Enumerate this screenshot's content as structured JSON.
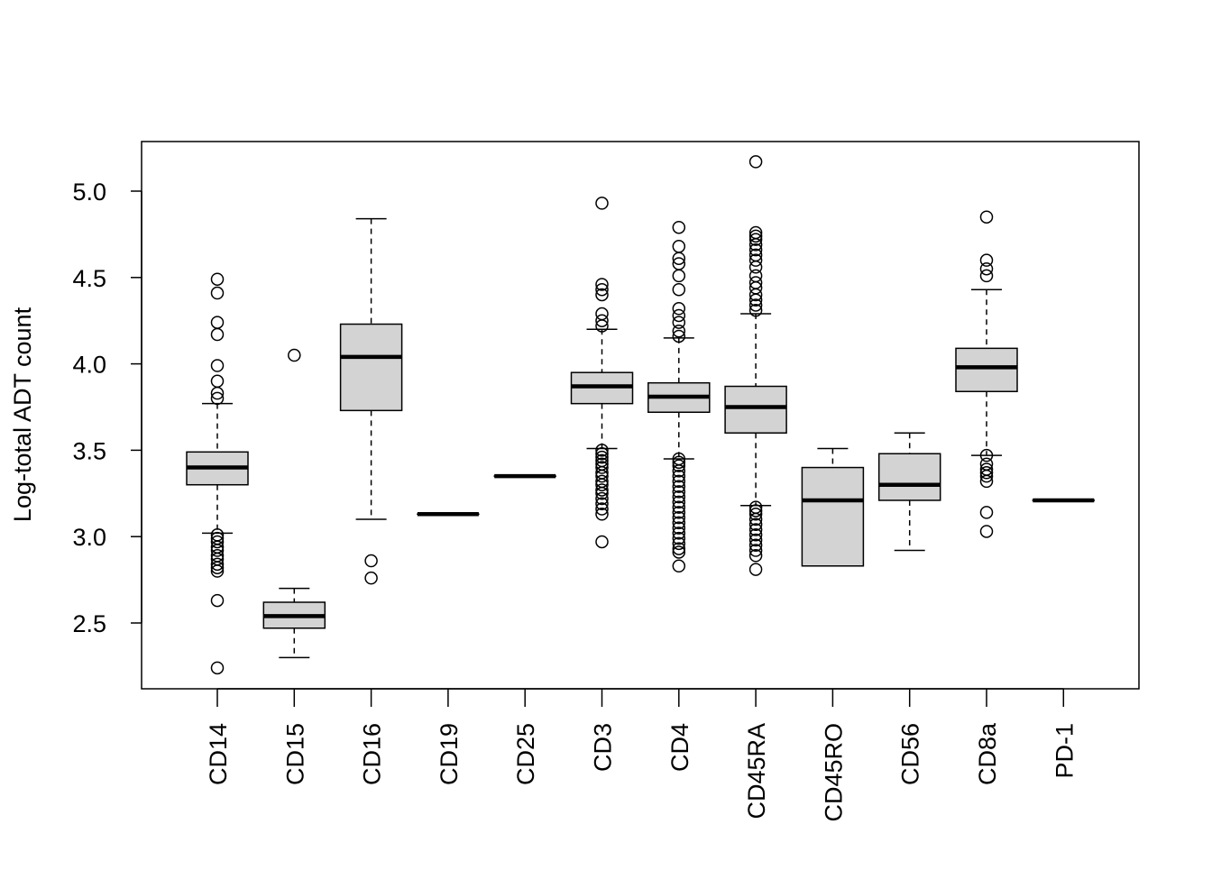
{
  "chart_data": {
    "type": "boxplot",
    "title": "",
    "xlabel": "",
    "ylabel": "Log-total ADT count",
    "ylim": [
      2.2,
      5.2
    ],
    "yticks": [
      "2.5",
      "3.0",
      "3.5",
      "4.0",
      "4.5",
      "5.0"
    ],
    "ytick_values": [
      2.5,
      3.0,
      3.5,
      4.0,
      4.5,
      5.0
    ],
    "box_fill": "#d3d3d3",
    "categories": [
      "CD14",
      "CD15",
      "CD16",
      "CD19",
      "CD25",
      "CD3",
      "CD4",
      "CD45RA",
      "CD45RO",
      "CD56",
      "CD8a",
      "PD-1"
    ],
    "boxes": [
      {
        "name": "CD14",
        "whisker_low": 3.02,
        "q1": 3.3,
        "median": 3.4,
        "q3": 3.49,
        "whisker_high": 3.77,
        "outliers": [
          4.49,
          4.41,
          4.24,
          4.17,
          3.99,
          3.9,
          3.83,
          3.8,
          3.01,
          2.99,
          2.97,
          2.94,
          2.92,
          2.89,
          2.87,
          2.84,
          2.82,
          2.8,
          2.63,
          2.24
        ]
      },
      {
        "name": "CD15",
        "whisker_low": 2.3,
        "q1": 2.47,
        "median": 2.54,
        "q3": 2.62,
        "whisker_high": 2.7,
        "outliers": [
          4.05
        ]
      },
      {
        "name": "CD16",
        "whisker_low": 3.1,
        "q1": 3.73,
        "median": 4.04,
        "q3": 4.23,
        "whisker_high": 4.84,
        "outliers": [
          2.86,
          2.76
        ]
      },
      {
        "name": "CD19",
        "whisker_low": 3.13,
        "q1": 3.13,
        "median": 3.13,
        "q3": 3.13,
        "whisker_high": 3.13,
        "outliers": []
      },
      {
        "name": "CD25",
        "whisker_low": 3.35,
        "q1": 3.35,
        "median": 3.35,
        "q3": 3.35,
        "whisker_high": 3.35,
        "outliers": []
      },
      {
        "name": "CD3",
        "whisker_low": 3.51,
        "q1": 3.77,
        "median": 3.87,
        "q3": 3.95,
        "whisker_high": 4.2,
        "outliers": [
          4.93,
          4.46,
          4.43,
          4.4,
          4.29,
          4.25,
          4.22,
          3.5,
          3.48,
          3.46,
          3.44,
          3.42,
          3.4,
          3.37,
          3.35,
          3.32,
          3.3,
          3.27,
          3.25,
          3.22,
          3.19,
          3.16,
          3.13,
          2.97
        ]
      },
      {
        "name": "CD4",
        "whisker_low": 3.45,
        "q1": 3.72,
        "median": 3.81,
        "q3": 3.89,
        "whisker_high": 4.15,
        "outliers": [
          4.79,
          4.68,
          4.61,
          4.58,
          4.51,
          4.43,
          4.32,
          4.28,
          4.24,
          4.19,
          4.16,
          3.45,
          3.43,
          3.41,
          3.38,
          3.35,
          3.32,
          3.29,
          3.26,
          3.23,
          3.2,
          3.17,
          3.14,
          3.11,
          3.08,
          3.05,
          3.02,
          2.99,
          2.96,
          2.93,
          2.91,
          2.83
        ]
      },
      {
        "name": "CD45RA",
        "whisker_low": 3.18,
        "q1": 3.6,
        "median": 3.75,
        "q3": 3.87,
        "whisker_high": 4.29,
        "outliers": [
          5.17,
          4.76,
          4.74,
          4.72,
          4.69,
          4.66,
          4.63,
          4.6,
          4.56,
          4.51,
          4.47,
          4.44,
          4.4,
          4.37,
          4.34,
          4.31,
          3.17,
          3.15,
          3.13,
          3.1,
          3.07,
          3.04,
          3.01,
          2.98,
          2.95,
          2.92,
          2.89,
          2.81
        ]
      },
      {
        "name": "CD45RO",
        "whisker_low": 2.83,
        "q1": 2.83,
        "median": 3.21,
        "q3": 3.4,
        "whisker_high": 3.51,
        "outliers": []
      },
      {
        "name": "CD56",
        "whisker_low": 2.92,
        "q1": 3.21,
        "median": 3.3,
        "q3": 3.48,
        "whisker_high": 3.6,
        "outliers": []
      },
      {
        "name": "CD8a",
        "whisker_low": 3.47,
        "q1": 3.84,
        "median": 3.98,
        "q3": 4.09,
        "whisker_high": 4.43,
        "outliers": [
          4.85,
          4.6,
          4.55,
          4.51,
          3.47,
          3.42,
          3.39,
          3.37,
          3.35,
          3.32,
          3.14,
          3.03
        ]
      },
      {
        "name": "PD-1",
        "whisker_low": 3.21,
        "q1": 3.21,
        "median": 3.21,
        "q3": 3.21,
        "whisker_high": 3.21,
        "outliers": []
      }
    ]
  }
}
